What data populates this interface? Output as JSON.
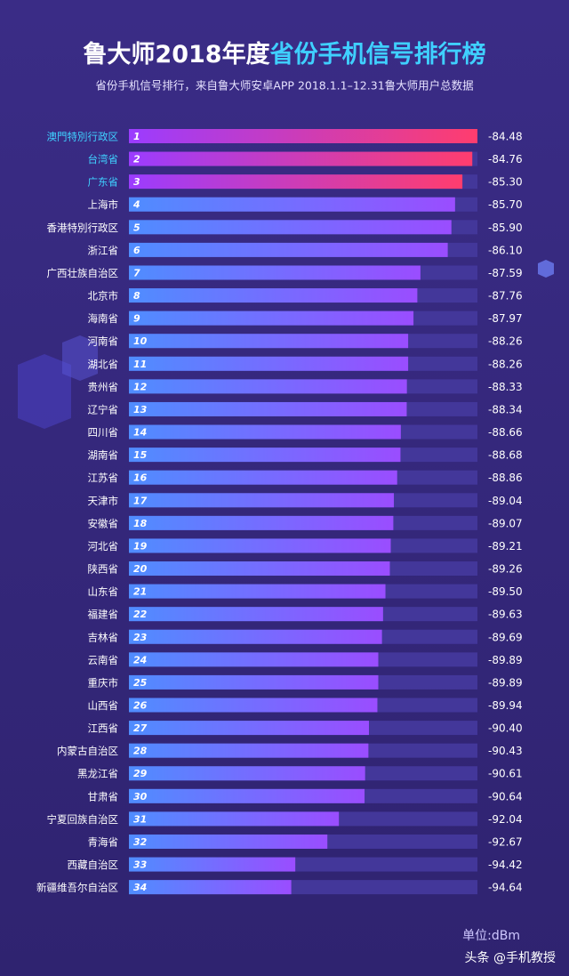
{
  "chart_data": {
    "type": "bar",
    "title_parts": [
      "鲁大师2018年度",
      "省份手机信号排行榜"
    ],
    "subtitle": "省份手机信号排行，来自鲁大师安卓APP 2018.1.1–12.31鲁大师用户总数据",
    "categories": [
      "澳門特別行政区",
      "台湾省",
      "广东省",
      "上海市",
      "香港特別行政区",
      "浙江省",
      "广西壮族自治区",
      "北京市",
      "海南省",
      "河南省",
      "湖北省",
      "贵州省",
      "辽宁省",
      "四川省",
      "湖南省",
      "江苏省",
      "天津市",
      "安徽省",
      "河北省",
      "陕西省",
      "山东省",
      "福建省",
      "吉林省",
      "云南省",
      "重庆市",
      "山西省",
      "江西省",
      "内蒙古自治区",
      "黑龙江省",
      "甘肃省",
      "宁夏回族自治区",
      "青海省",
      "西藏自治区",
      "新疆维吾尔自治区"
    ],
    "ranks": [
      1,
      2,
      3,
      4,
      5,
      6,
      7,
      8,
      9,
      10,
      11,
      12,
      13,
      14,
      15,
      16,
      17,
      18,
      19,
      20,
      21,
      22,
      23,
      24,
      25,
      26,
      27,
      28,
      29,
      30,
      31,
      32,
      33,
      34
    ],
    "values": [
      -84.48,
      -84.76,
      -85.3,
      -85.7,
      -85.9,
      -86.1,
      -87.59,
      -87.76,
      -87.97,
      -88.26,
      -88.26,
      -88.33,
      -88.34,
      -88.66,
      -88.68,
      -88.86,
      -89.04,
      -89.07,
      -89.21,
      -89.26,
      -89.5,
      -89.63,
      -89.69,
      -89.89,
      -89.89,
      -89.94,
      -90.4,
      -90.43,
      -90.61,
      -90.64,
      -92.04,
      -92.67,
      -94.42,
      -94.64
    ],
    "value_labels": [
      "-84.48",
      "-84.76",
      "-85.30",
      "-85.70",
      "-85.90",
      "-86.10",
      "-87.59",
      "-87.76",
      "-87.97",
      "-88.26",
      "-88.26",
      "-88.33",
      "-88.34",
      "-88.66",
      "-88.68",
      "-88.86",
      "-89.04",
      "-89.07",
      "-89.21",
      "-89.26",
      "-89.50",
      "-89.63",
      "-89.69",
      "-89.89",
      "-89.89",
      "-89.94",
      "-90.40",
      "-90.43",
      "-90.61",
      "-90.64",
      "-92.04",
      "-92.67",
      "-94.42",
      "-94.64"
    ],
    "xlim": [
      -103.5,
      -84.48
    ],
    "color": [
      "#4f8dff",
      "#9a4dff"
    ],
    "highlight_color": [
      "#9b3cff",
      "#ff3d6e"
    ],
    "highlight_count": 3,
    "unit": "单位:dBm",
    "watermark": "头条 @手机教授"
  }
}
